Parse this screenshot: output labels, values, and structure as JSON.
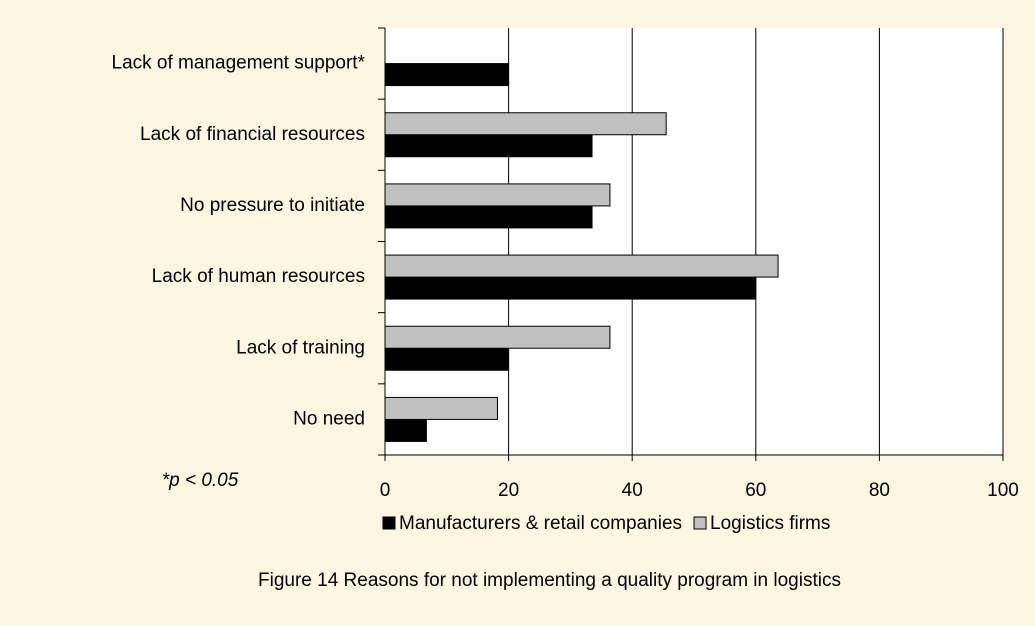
{
  "chart_data": {
    "type": "barh",
    "categories": [
      "Lack of management support*",
      "Lack of financial resources",
      "No pressure to initiate",
      "Lack of human resources",
      "Lack of training",
      "No need"
    ],
    "series": [
      {
        "name": "Manufacturers & retail companies",
        "color": "#000000",
        "values": [
          20,
          33.5,
          33.5,
          60,
          20,
          6.7
        ]
      },
      {
        "name": "Logistics firms",
        "color": "#c0c0c0",
        "values": [
          null,
          45.5,
          36.4,
          63.6,
          36.4,
          18.2
        ]
      }
    ],
    "xlim": [
      0,
      100
    ],
    "xticks": [
      0,
      20,
      40,
      60,
      80,
      100
    ],
    "grid": true,
    "annotation": "*p < 0.05",
    "caption": "Figure 14 Reasons for not implementing a quality program in logistics",
    "legend": "bottom"
  }
}
